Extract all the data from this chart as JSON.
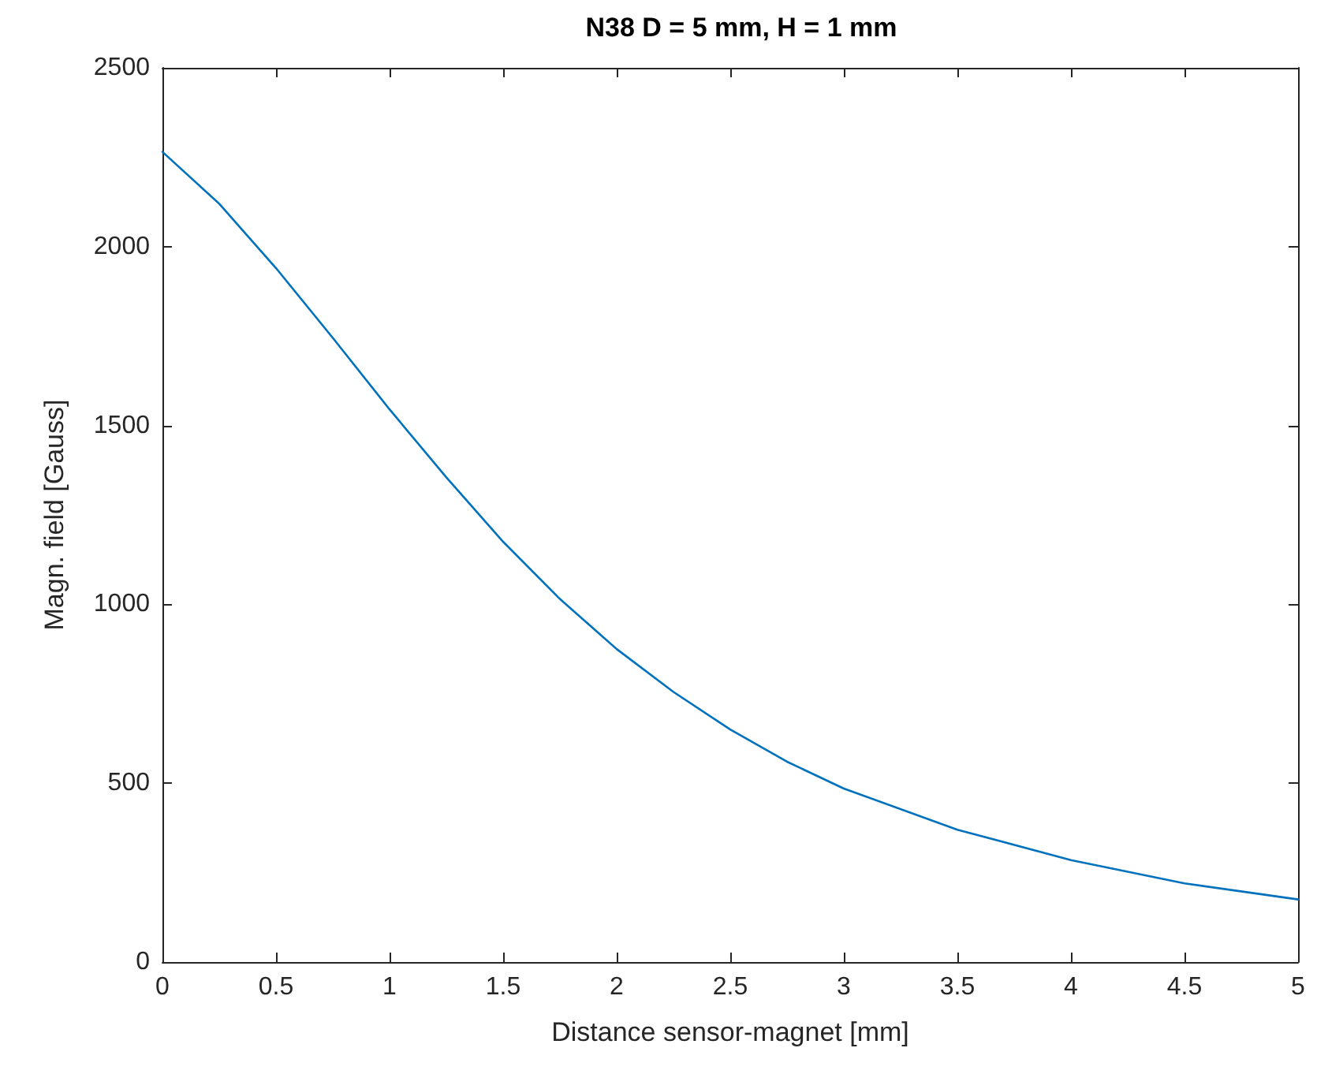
{
  "chart_data": {
    "type": "line",
    "title": "N38 D = 5 mm, H = 1 mm",
    "xlabel": "Distance sensor-magnet [mm]",
    "ylabel": "Magn. field [Gauss]",
    "x": [
      0,
      0.25,
      0.5,
      0.75,
      1,
      1.25,
      1.5,
      1.75,
      2,
      2.25,
      2.5,
      2.75,
      3,
      3.5,
      4,
      4.5,
      5
    ],
    "series": [
      {
        "color": "#0072bd",
        "values": [
          2265,
          2120,
          1940,
          1745,
          1545,
          1355,
          1175,
          1015,
          875,
          755,
          650,
          560,
          485,
          370,
          285,
          220,
          175
        ]
      }
    ],
    "xlim": [
      0,
      5
    ],
    "xticks": [
      0,
      0.5,
      1,
      1.5,
      2,
      2.5,
      3,
      3.5,
      4,
      4.5,
      5
    ],
    "ylim": [
      0,
      2500
    ],
    "yticks": [
      0,
      500,
      1000,
      1500,
      2000,
      2500
    ],
    "grid": false,
    "marker": "none",
    "line_style": "solid"
  }
}
